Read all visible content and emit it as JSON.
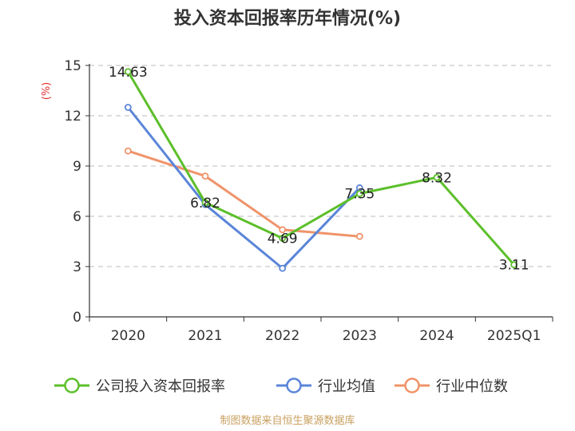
{
  "chart_data": {
    "type": "line",
    "title": "投入资本回报率历年情况(%)",
    "ylabel": "(%)",
    "categories": [
      "2020",
      "2021",
      "2022",
      "2023",
      "2024",
      "2025Q1"
    ],
    "ylim": [
      0,
      15
    ],
    "yticks": [
      0,
      3,
      6,
      9,
      12,
      15
    ],
    "grid": true,
    "legend_position": "bottom",
    "series": [
      {
        "name": "公司投入资本回报率",
        "color": "#5cbf2a",
        "values": [
          14.63,
          6.82,
          4.69,
          7.35,
          8.32,
          3.11
        ],
        "labels": [
          "14.63",
          "6.82",
          "4.69",
          "7.35",
          "8.32",
          "3.11"
        ]
      },
      {
        "name": "行业均值",
        "color": "#5a85d8",
        "values": [
          12.5,
          6.7,
          2.9,
          7.7,
          null,
          null
        ]
      },
      {
        "name": "行业中位数",
        "color": "#f0936a",
        "values": [
          9.9,
          8.4,
          5.2,
          4.8,
          null,
          null
        ]
      }
    ]
  },
  "source": "制图数据来自恒生聚源数据库"
}
